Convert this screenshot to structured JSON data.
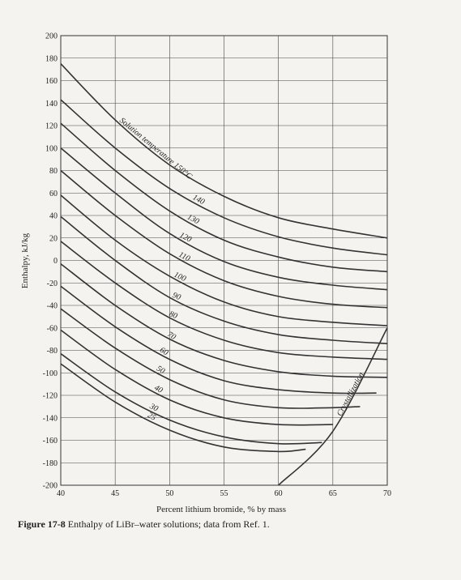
{
  "caption": {
    "figure_number": "Figure 17-8",
    "text": "Enthalpy of LiBr–water solutions; data from Ref. 1."
  },
  "colors": {
    "curve": "#333333",
    "grid": "#444444",
    "axis": "#222222"
  },
  "chart_data": {
    "type": "line",
    "title": "",
    "xlabel": "Percent lithium bromide, % by mass",
    "ylabel": "Enthalpy, kJ/kg",
    "xlim": [
      40,
      70
    ],
    "ylim": [
      -200,
      200
    ],
    "x_ticks": [
      40,
      45,
      50,
      55,
      60,
      65,
      70
    ],
    "y_ticks": [
      200,
      180,
      160,
      140,
      120,
      100,
      80,
      60,
      40,
      20,
      0,
      -20,
      -40,
      -60,
      -80,
      -100,
      -120,
      -140,
      -160,
      -180,
      -200
    ],
    "grid": true,
    "legend": "none",
    "series": [
      {
        "name": "150°C",
        "label": "Solution temperature 150°C",
        "x": [
          40,
          45,
          50,
          55,
          60,
          65,
          70
        ],
        "y": [
          175,
          125,
          85,
          57,
          38,
          28,
          20
        ]
      },
      {
        "name": "140",
        "label": "140",
        "x": [
          40,
          45,
          50,
          55,
          60,
          65,
          70
        ],
        "y": [
          143,
          100,
          64,
          38,
          21,
          11,
          5
        ]
      },
      {
        "name": "130",
        "label": "130",
        "x": [
          40,
          45,
          50,
          55,
          60,
          65,
          70
        ],
        "y": [
          122,
          80,
          44,
          18,
          3,
          -6,
          -10
        ]
      },
      {
        "name": "120",
        "label": "120",
        "x": [
          40,
          45,
          50,
          55,
          60,
          65,
          70
        ],
        "y": [
          100,
          60,
          24,
          -1,
          -15,
          -22,
          -26
        ]
      },
      {
        "name": "110",
        "label": "110",
        "x": [
          40,
          45,
          50,
          55,
          60,
          65,
          70
        ],
        "y": [
          80,
          40,
          6,
          -18,
          -32,
          -39,
          -42
        ]
      },
      {
        "name": "100",
        "label": "100",
        "x": [
          40,
          45,
          50,
          55,
          60,
          65,
          70
        ],
        "y": [
          58,
          18,
          -14,
          -37,
          -50,
          -55,
          -58
        ]
      },
      {
        "name": "90",
        "label": "90",
        "x": [
          40,
          45,
          50,
          55,
          60,
          65,
          70
        ],
        "y": [
          39,
          0,
          -33,
          -54,
          -66,
          -71,
          -74
        ]
      },
      {
        "name": "80",
        "label": "80",
        "x": [
          40,
          45,
          50,
          55,
          60,
          65,
          70
        ],
        "y": [
          17,
          -20,
          -51,
          -71,
          -82,
          -86,
          -88
        ]
      },
      {
        "name": "70",
        "label": "70",
        "x": [
          40,
          45,
          50,
          55,
          60,
          65,
          70
        ],
        "y": [
          -3,
          -40,
          -70,
          -89,
          -99,
          -103,
          -104
        ]
      },
      {
        "name": "60",
        "label": "60",
        "x": [
          40,
          45,
          50,
          55,
          60,
          65,
          69
        ],
        "y": [
          -23,
          -59,
          -88,
          -107,
          -115,
          -118,
          -118
        ]
      },
      {
        "name": "50",
        "label": "50",
        "x": [
          40,
          45,
          50,
          55,
          60,
          65,
          67.5
        ],
        "y": [
          -43,
          -78,
          -106,
          -124,
          -131,
          -131,
          -130
        ]
      },
      {
        "name": "40",
        "label": "40",
        "x": [
          40,
          45,
          50,
          55,
          60,
          65
        ],
        "y": [
          -62,
          -97,
          -124,
          -140,
          -146,
          -146
        ]
      },
      {
        "name": "30",
        "label": "30",
        "x": [
          40,
          45,
          50,
          55,
          60,
          64
        ],
        "y": [
          -83,
          -117,
          -142,
          -157,
          -163,
          -162
        ]
      },
      {
        "name": "25",
        "label": "25",
        "x": [
          40,
          45,
          50,
          55,
          60,
          62.5
        ],
        "y": [
          -92,
          -126,
          -151,
          -166,
          -170,
          -168
        ]
      }
    ],
    "crystallization_line": {
      "label": "Crystallization",
      "x": [
        60,
        65,
        70
      ],
      "y": [
        -200,
        -152,
        -60
      ]
    }
  }
}
